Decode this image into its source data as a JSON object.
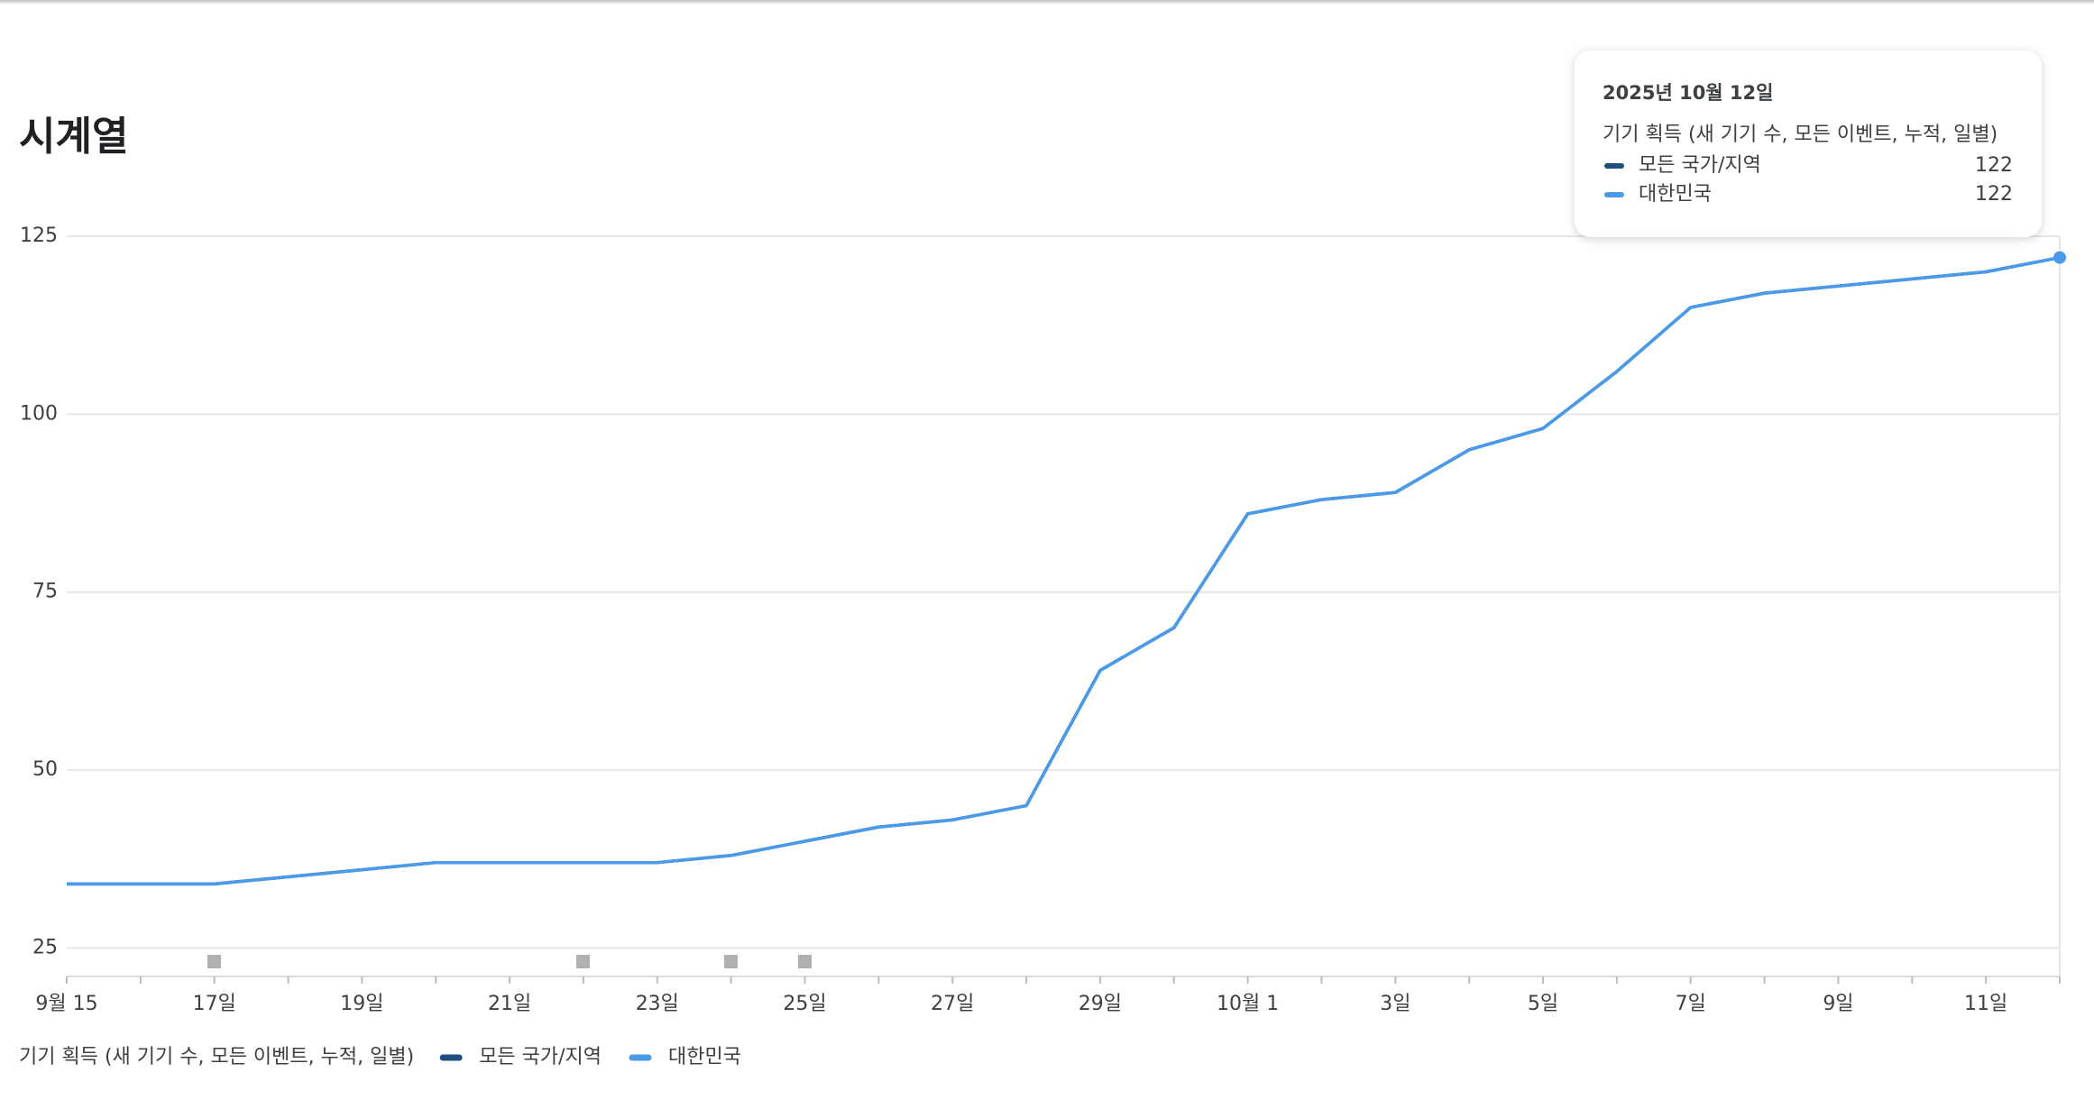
{
  "chart_data": {
    "type": "line",
    "title": "시계열",
    "metric_label": "기기 획득 (새 기기 수, 모든 이벤트, 누적, 일별)",
    "categories": [
      "9월 15",
      null,
      "17일",
      null,
      "19일",
      null,
      "21일",
      null,
      "23일",
      null,
      "25일",
      null,
      "27일",
      null,
      "29일",
      null,
      "10월 1",
      null,
      "3일",
      null,
      "5일",
      null,
      "7일",
      null,
      "9일",
      null,
      "11일",
      null
    ],
    "series": [
      {
        "name": "모든 국가/지역",
        "color": "#1f4f82",
        "values": [
          34,
          34,
          34,
          35,
          36,
          37,
          37,
          37,
          37,
          38,
          40,
          42,
          43,
          45,
          64,
          70,
          86,
          88,
          89,
          95,
          98,
          106,
          115,
          117,
          118,
          119,
          120,
          122
        ]
      },
      {
        "name": "대한민국",
        "color": "#4a9aea",
        "values": [
          34,
          34,
          34,
          35,
          36,
          37,
          37,
          37,
          37,
          38,
          40,
          42,
          43,
          45,
          64,
          70,
          86,
          88,
          89,
          95,
          98,
          106,
          115,
          117,
          118,
          119,
          120,
          122
        ]
      }
    ],
    "ylim": [
      21,
      125
    ],
    "yticks": [
      25,
      50,
      75,
      100,
      125
    ],
    "grid": true,
    "tooltip": {
      "date": "2025년 10월 12일"
    }
  }
}
